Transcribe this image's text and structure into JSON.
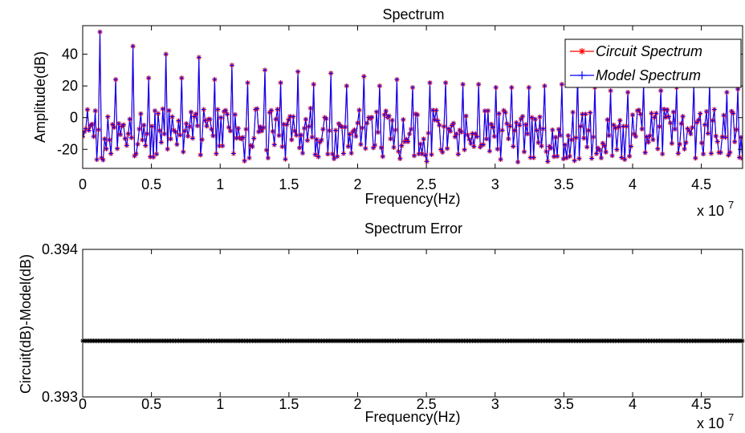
{
  "chart_data": [
    {
      "type": "line",
      "title": "Spectrum",
      "xlabel": "Frequency(Hz)",
      "ylabel": "Amplitude(dB)",
      "x_multiplier": "x 10",
      "x_multiplier_exp": "7",
      "xlim": [
        0,
        48000000
      ],
      "ylim": [
        -32,
        58
      ],
      "xticks": [
        0,
        5000000,
        10000000,
        15000000,
        20000000,
        25000000,
        30000000,
        35000000,
        40000000,
        45000000
      ],
      "xticklabels": [
        "0",
        "0.5",
        "1",
        "1.5",
        "2",
        "2.5",
        "3",
        "3.5",
        "4",
        "4.5"
      ],
      "yticks": [
        -20,
        0,
        20,
        40
      ],
      "yticklabels": [
        "-20",
        "0",
        "20",
        "40"
      ],
      "grid": false,
      "legend_position": "top-right",
      "series": [
        {
          "name": "Circuit Spectrum",
          "color": "#ff0000",
          "marker": "asterisk"
        },
        {
          "name": "Model Spectrum",
          "color": "#0000ff",
          "marker": "plus"
        }
      ],
      "sample_count": 420,
      "x_step": 114285,
      "peaks": [
        {
          "x": 1200000,
          "y": 54
        },
        {
          "x": 2400000,
          "y": 24
        },
        {
          "x": 3600000,
          "y": 45
        },
        {
          "x": 4800000,
          "y": 25
        },
        {
          "x": 6000000,
          "y": 40
        },
        {
          "x": 7200000,
          "y": 25
        },
        {
          "x": 8400000,
          "y": 38
        },
        {
          "x": 9600000,
          "y": 24
        },
        {
          "x": 10800000,
          "y": 33
        },
        {
          "x": 12000000,
          "y": 22
        },
        {
          "x": 13200000,
          "y": 30
        },
        {
          "x": 14400000,
          "y": 22
        },
        {
          "x": 15600000,
          "y": 29
        },
        {
          "x": 16800000,
          "y": 21
        },
        {
          "x": 18000000,
          "y": 28
        },
        {
          "x": 19200000,
          "y": 20
        },
        {
          "x": 20400000,
          "y": 26
        },
        {
          "x": 21600000,
          "y": 20
        },
        {
          "x": 22800000,
          "y": 24
        },
        {
          "x": 24000000,
          "y": 19
        },
        {
          "x": 25200000,
          "y": 22
        },
        {
          "x": 26400000,
          "y": 22
        },
        {
          "x": 27600000,
          "y": 21
        },
        {
          "x": 28800000,
          "y": 21
        },
        {
          "x": 30000000,
          "y": 19
        },
        {
          "x": 31200000,
          "y": 19
        },
        {
          "x": 32400000,
          "y": 19
        },
        {
          "x": 33600000,
          "y": 20
        },
        {
          "x": 34800000,
          "y": 21
        },
        {
          "x": 36000000,
          "y": 26
        },
        {
          "x": 37200000,
          "y": 19
        },
        {
          "x": 38400000,
          "y": 17
        },
        {
          "x": 39600000,
          "y": 16
        },
        {
          "x": 40800000,
          "y": 21
        },
        {
          "x": 42000000,
          "y": 17
        },
        {
          "x": 43200000,
          "y": 19
        },
        {
          "x": 44400000,
          "y": 21
        },
        {
          "x": 45600000,
          "y": 21
        },
        {
          "x": 46800000,
          "y": 16
        },
        {
          "x": 47700000,
          "y": 18
        }
      ],
      "baseline_range": [
        -30,
        8
      ]
    },
    {
      "type": "line",
      "title": "Spectrum Error",
      "xlabel": "Frequency(Hz)",
      "ylabel": "Circuit(dB)-Model(dB)",
      "x_multiplier": "x 10",
      "x_multiplier_exp": "7",
      "xlim": [
        0,
        48000000
      ],
      "ylim": [
        0.393,
        0.394
      ],
      "xticks": [
        0,
        5000000,
        10000000,
        15000000,
        20000000,
        25000000,
        30000000,
        35000000,
        40000000,
        45000000
      ],
      "xticklabels": [
        "0",
        "0.5",
        "1",
        "1.5",
        "2",
        "2.5",
        "3",
        "3.5",
        "4",
        "4.5"
      ],
      "yticks": [
        0.393,
        0.394
      ],
      "yticklabels": [
        "0.393",
        "0.394"
      ],
      "grid": false,
      "series": [
        {
          "color": "#000000",
          "marker": "asterisk",
          "constant_value": 0.39338
        }
      ],
      "sample_count": 420
    }
  ]
}
